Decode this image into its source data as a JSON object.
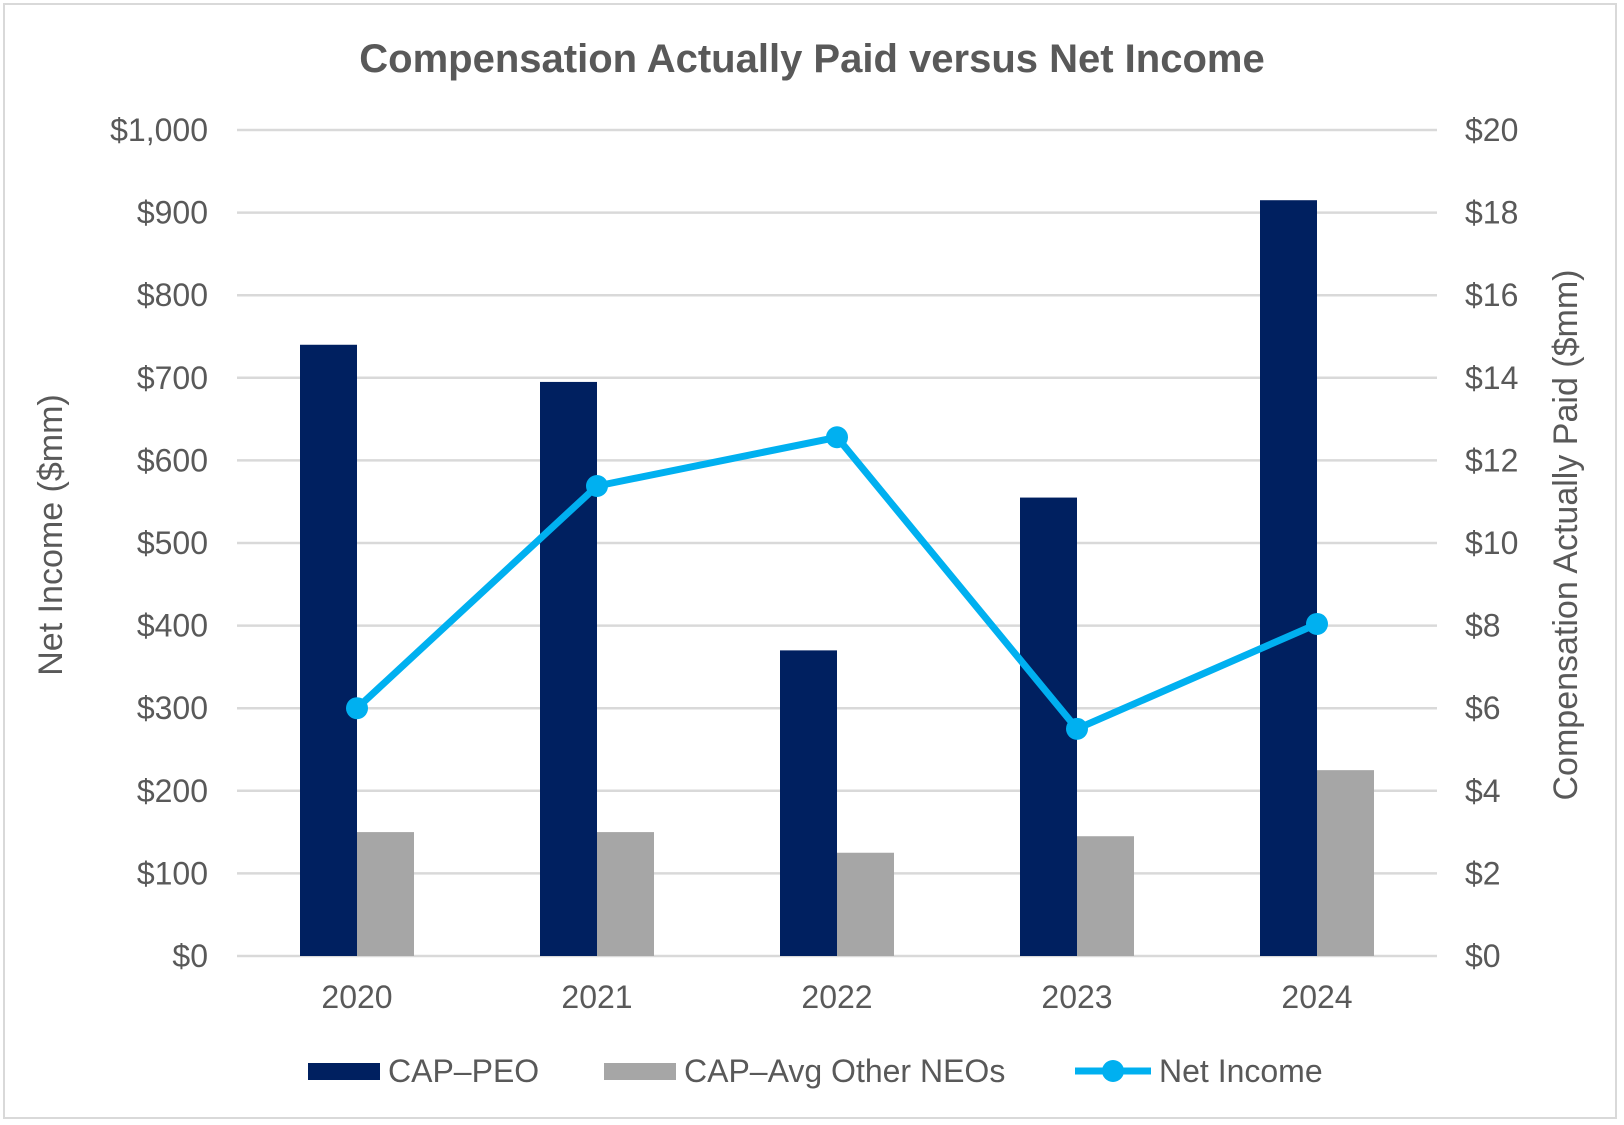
{
  "chart_data": {
    "type": "bar",
    "title": "Compensation Actually Paid versus Net Income",
    "categories": [
      "2020",
      "2021",
      "2022",
      "2023",
      "2024"
    ],
    "left_axis": {
      "label": "Net Income ($mm)",
      "ylim": [
        0,
        1000
      ],
      "ticks": [
        "$0",
        "$100",
        "$200",
        "$300",
        "$400",
        "$500",
        "$600",
        "$700",
        "$800",
        "$900",
        "$1,000"
      ]
    },
    "right_axis": {
      "label": "Compensation Actually Paid ($mm)",
      "ylim": [
        0,
        20
      ],
      "ticks": [
        "$0",
        "$2",
        "$4",
        "$6",
        "$8",
        "$10",
        "$12",
        "$14",
        "$16",
        "$18",
        "$20"
      ]
    },
    "series": [
      {
        "name": "CAP–PEO",
        "kind": "bar",
        "axis": "right",
        "color": "#002060",
        "values": [
          14.8,
          13.9,
          7.4,
          11.1,
          18.3
        ]
      },
      {
        "name": "CAP–Avg Other NEOs",
        "kind": "bar",
        "axis": "right",
        "color": "#a6a6a6",
        "values": [
          3.0,
          3.0,
          2.5,
          2.9,
          4.5
        ]
      },
      {
        "name": "Net Income",
        "kind": "line",
        "axis": "left",
        "color": "#00b0f0",
        "values": [
          300,
          569,
          628,
          275,
          402
        ]
      }
    ],
    "grid": true,
    "legend_position": "bottom"
  }
}
